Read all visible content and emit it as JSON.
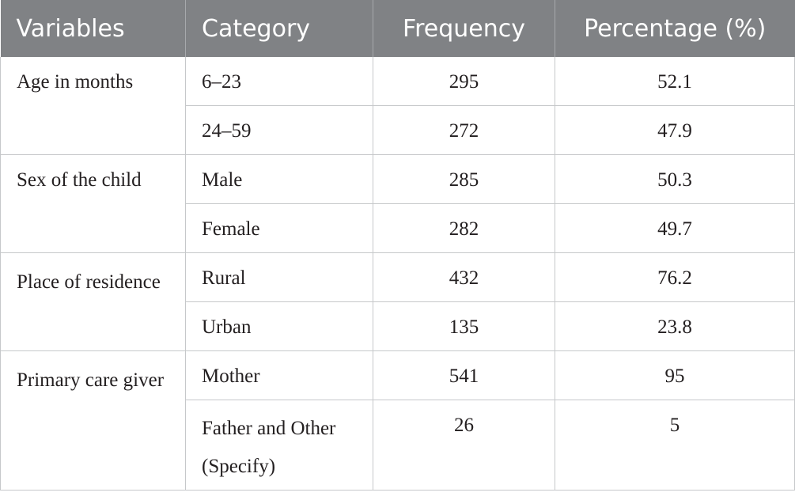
{
  "table": {
    "headers": [
      "Variables",
      "Category",
      "Frequency",
      "Percentage (%)"
    ],
    "groups": [
      {
        "variable": "Age in months",
        "rows": [
          {
            "category": "6–23",
            "frequency": "295",
            "percentage": "52.1"
          },
          {
            "category": "24–59",
            "frequency": "272",
            "percentage": "47.9"
          }
        ]
      },
      {
        "variable": "Sex of the child",
        "rows": [
          {
            "category": "Male",
            "frequency": "285",
            "percentage": "50.3"
          },
          {
            "category": "Female",
            "frequency": "282",
            "percentage": "49.7"
          }
        ]
      },
      {
        "variable": "Place of residence",
        "rows": [
          {
            "category": "Rural",
            "frequency": "432",
            "percentage": "76.2"
          },
          {
            "category": "Urban",
            "frequency": "135",
            "percentage": "23.8"
          }
        ]
      },
      {
        "variable": "Primary care giver",
        "rows": [
          {
            "category": "Mother",
            "frequency": "541",
            "percentage": "95"
          },
          {
            "category": "Father and Other (Specify)",
            "frequency": "26",
            "percentage": "5"
          }
        ]
      }
    ]
  }
}
